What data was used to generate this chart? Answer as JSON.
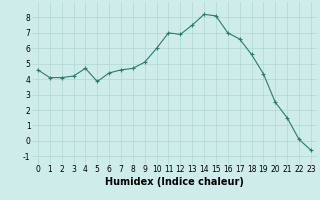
{
  "x": [
    0,
    1,
    2,
    3,
    4,
    5,
    6,
    7,
    8,
    9,
    10,
    11,
    12,
    13,
    14,
    15,
    16,
    17,
    18,
    19,
    20,
    21,
    22,
    23
  ],
  "y": [
    4.6,
    4.1,
    4.1,
    4.2,
    4.7,
    3.85,
    4.4,
    4.6,
    4.7,
    5.1,
    6.0,
    7.0,
    6.9,
    7.5,
    8.2,
    8.1,
    7.0,
    6.6,
    5.6,
    4.35,
    2.5,
    1.5,
    0.1,
    -0.6
  ],
  "line_color": "#2d7a6e",
  "marker": "+",
  "marker_size": 3,
  "marker_linewidth": 0.8,
  "bg_color": "#ceecea",
  "grid_color": "#b0d8d4",
  "xlabel": "Humidex (Indice chaleur)",
  "xlabel_fontsize": 7,
  "xlabel_bold": true,
  "ylim": [
    -1.5,
    9.0
  ],
  "xlim": [
    -0.5,
    23.5
  ],
  "yticks": [
    -1,
    0,
    1,
    2,
    3,
    4,
    5,
    6,
    7,
    8
  ],
  "xticks": [
    0,
    1,
    2,
    3,
    4,
    5,
    6,
    7,
    8,
    9,
    10,
    11,
    12,
    13,
    14,
    15,
    16,
    17,
    18,
    19,
    20,
    21,
    22,
    23
  ],
  "tick_fontsize": 5.5,
  "line_width": 0.8
}
